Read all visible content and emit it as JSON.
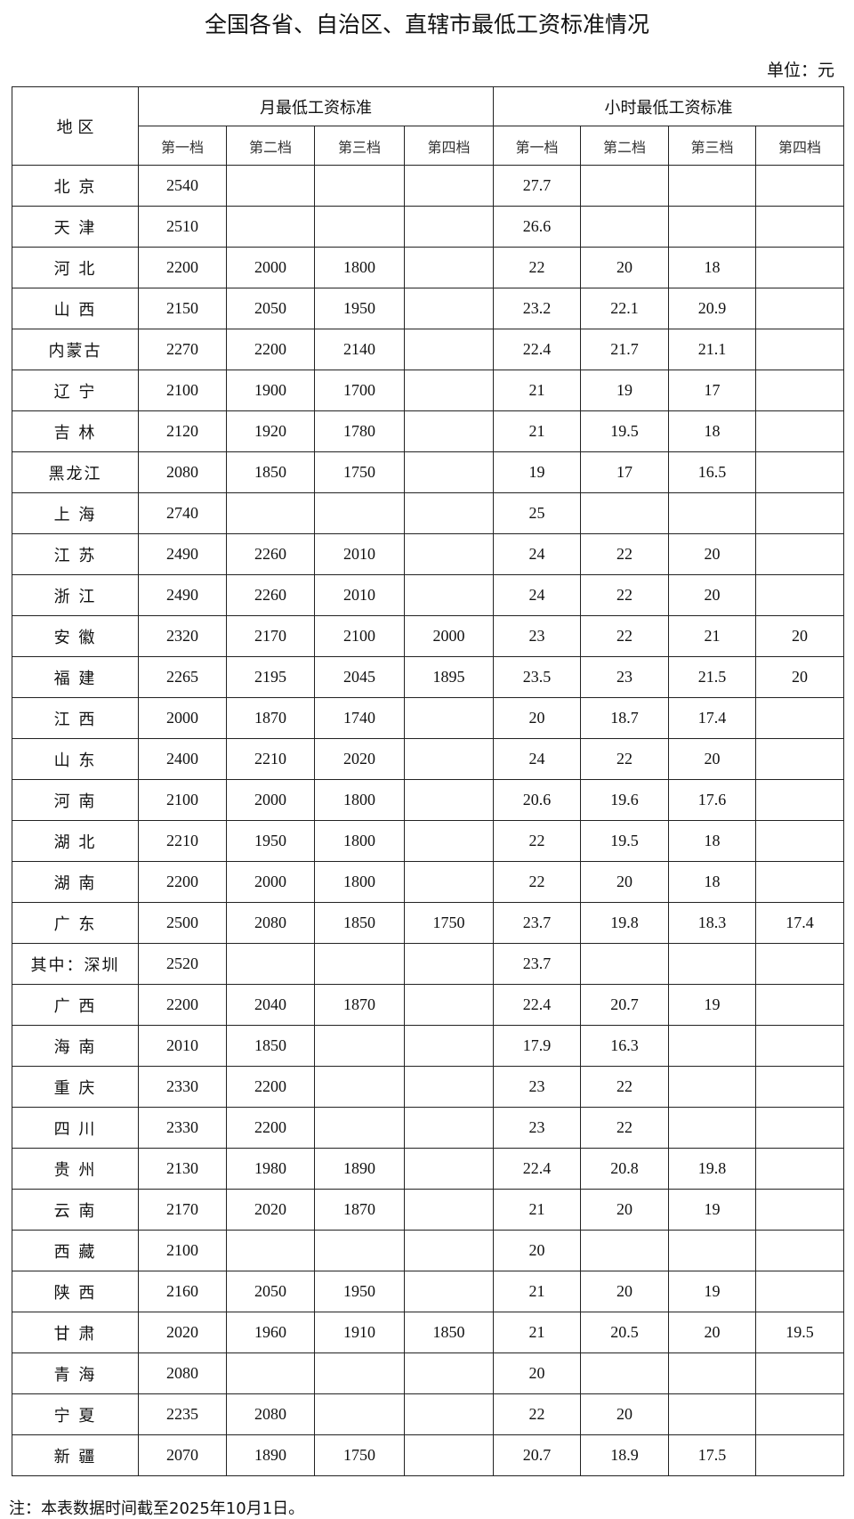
{
  "title": "全国各省、自治区、直辖市最低工资标准情况",
  "unit": "单位：元",
  "headers": {
    "region": "地 区",
    "monthly": "月最低工资标准",
    "hourly": "小时最低工资标准",
    "tiers": [
      "第一档",
      "第二档",
      "第三档",
      "第四档"
    ]
  },
  "rows": [
    {
      "region": "北 京",
      "monthly": [
        "2540",
        "",
        "",
        ""
      ],
      "hourly": [
        "27.7",
        "",
        "",
        ""
      ]
    },
    {
      "region": "天 津",
      "monthly": [
        "2510",
        "",
        "",
        ""
      ],
      "hourly": [
        "26.6",
        "",
        "",
        ""
      ]
    },
    {
      "region": "河 北",
      "monthly": [
        "2200",
        "2000",
        "1800",
        ""
      ],
      "hourly": [
        "22",
        "20",
        "18",
        ""
      ]
    },
    {
      "region": "山 西",
      "monthly": [
        "2150",
        "2050",
        "1950",
        ""
      ],
      "hourly": [
        "23.2",
        "22.1",
        "20.9",
        ""
      ]
    },
    {
      "region": "内蒙古",
      "monthly": [
        "2270",
        "2200",
        "2140",
        ""
      ],
      "hourly": [
        "22.4",
        "21.7",
        "21.1",
        ""
      ]
    },
    {
      "region": "辽 宁",
      "monthly": [
        "2100",
        "1900",
        "1700",
        ""
      ],
      "hourly": [
        "21",
        "19",
        "17",
        ""
      ]
    },
    {
      "region": "吉 林",
      "monthly": [
        "2120",
        "1920",
        "1780",
        ""
      ],
      "hourly": [
        "21",
        "19.5",
        "18",
        ""
      ]
    },
    {
      "region": "黑龙江",
      "monthly": [
        "2080",
        "1850",
        "1750",
        ""
      ],
      "hourly": [
        "19",
        "17",
        "16.5",
        ""
      ]
    },
    {
      "region": "上 海",
      "monthly": [
        "2740",
        "",
        "",
        ""
      ],
      "hourly": [
        "25",
        "",
        "",
        ""
      ]
    },
    {
      "region": "江 苏",
      "monthly": [
        "2490",
        "2260",
        "2010",
        ""
      ],
      "hourly": [
        "24",
        "22",
        "20",
        ""
      ]
    },
    {
      "region": "浙 江",
      "monthly": [
        "2490",
        "2260",
        "2010",
        ""
      ],
      "hourly": [
        "24",
        "22",
        "20",
        ""
      ]
    },
    {
      "region": "安 徽",
      "monthly": [
        "2320",
        "2170",
        "2100",
        "2000"
      ],
      "hourly": [
        "23",
        "22",
        "21",
        "20"
      ]
    },
    {
      "region": "福 建",
      "monthly": [
        "2265",
        "2195",
        "2045",
        "1895"
      ],
      "hourly": [
        "23.5",
        "23",
        "21.5",
        "20"
      ]
    },
    {
      "region": "江 西",
      "monthly": [
        "2000",
        "1870",
        "1740",
        ""
      ],
      "hourly": [
        "20",
        "18.7",
        "17.4",
        ""
      ]
    },
    {
      "region": "山 东",
      "monthly": [
        "2400",
        "2210",
        "2020",
        ""
      ],
      "hourly": [
        "24",
        "22",
        "20",
        ""
      ]
    },
    {
      "region": "河 南",
      "monthly": [
        "2100",
        "2000",
        "1800",
        ""
      ],
      "hourly": [
        "20.6",
        "19.6",
        "17.6",
        ""
      ]
    },
    {
      "region": "湖 北",
      "monthly": [
        "2210",
        "1950",
        "1800",
        ""
      ],
      "hourly": [
        "22",
        "19.5",
        "18",
        ""
      ]
    },
    {
      "region": "湖 南",
      "monthly": [
        "2200",
        "2000",
        "1800",
        ""
      ],
      "hourly": [
        "22",
        "20",
        "18",
        ""
      ]
    },
    {
      "region": "广 东",
      "monthly": [
        "2500",
        "2080",
        "1850",
        "1750"
      ],
      "hourly": [
        "23.7",
        "19.8",
        "18.3",
        "17.4"
      ]
    },
    {
      "region": "其中：深圳",
      "monthly": [
        "2520",
        "",
        "",
        ""
      ],
      "hourly": [
        "23.7",
        "",
        "",
        ""
      ]
    },
    {
      "region": "广 西",
      "monthly": [
        "2200",
        "2040",
        "1870",
        ""
      ],
      "hourly": [
        "22.4",
        "20.7",
        "19",
        ""
      ]
    },
    {
      "region": "海 南",
      "monthly": [
        "2010",
        "1850",
        "",
        ""
      ],
      "hourly": [
        "17.9",
        "16.3",
        "",
        ""
      ]
    },
    {
      "region": "重 庆",
      "monthly": [
        "2330",
        "2200",
        "",
        ""
      ],
      "hourly": [
        "23",
        "22",
        "",
        ""
      ]
    },
    {
      "region": "四 川",
      "monthly": [
        "2330",
        "2200",
        "",
        ""
      ],
      "hourly": [
        "23",
        "22",
        "",
        ""
      ]
    },
    {
      "region": "贵 州",
      "monthly": [
        "2130",
        "1980",
        "1890",
        ""
      ],
      "hourly": [
        "22.4",
        "20.8",
        "19.8",
        ""
      ]
    },
    {
      "region": "云 南",
      "monthly": [
        "2170",
        "2020",
        "1870",
        ""
      ],
      "hourly": [
        "21",
        "20",
        "19",
        ""
      ]
    },
    {
      "region": "西 藏",
      "monthly": [
        "2100",
        "",
        "",
        ""
      ],
      "hourly": [
        "20",
        "",
        "",
        ""
      ]
    },
    {
      "region": "陕 西",
      "monthly": [
        "2160",
        "2050",
        "1950",
        ""
      ],
      "hourly": [
        "21",
        "20",
        "19",
        ""
      ]
    },
    {
      "region": "甘 肃",
      "monthly": [
        "2020",
        "1960",
        "1910",
        "1850"
      ],
      "hourly": [
        "21",
        "20.5",
        "20",
        "19.5"
      ]
    },
    {
      "region": "青 海",
      "monthly": [
        "2080",
        "",
        "",
        ""
      ],
      "hourly": [
        "20",
        "",
        "",
        ""
      ]
    },
    {
      "region": "宁 夏",
      "monthly": [
        "2235",
        "2080",
        "",
        ""
      ],
      "hourly": [
        "22",
        "20",
        "",
        ""
      ]
    },
    {
      "region": "新 疆",
      "monthly": [
        "2070",
        "1890",
        "1750",
        ""
      ],
      "hourly": [
        "20.7",
        "18.9",
        "17.5",
        ""
      ]
    }
  ],
  "note": "注：本表数据时间截至2025年10月1日。"
}
